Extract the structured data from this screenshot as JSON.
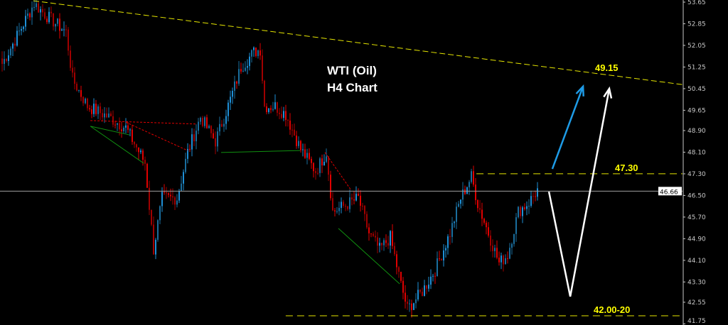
{
  "chart_data": {
    "type": "candlestick",
    "title_lines": [
      "WTI (Oil)",
      "H4 Chart"
    ],
    "ylim": [
      41.75,
      53.65
    ],
    "y_ticks": [
      "53.65",
      "52.85",
      "52.05",
      "51.25",
      "50.45",
      "49.65",
      "48.90",
      "48.10",
      "47.30",
      "46.50",
      "45.70",
      "44.90",
      "44.10",
      "43.30",
      "42.55",
      "41.75"
    ],
    "current_price": "46.66",
    "price_path": [
      [
        0,
        51.37
      ],
      [
        7,
        52.4
      ],
      [
        15,
        53.6
      ],
      [
        20,
        53.2
      ],
      [
        30,
        52.55
      ],
      [
        33,
        50.8
      ],
      [
        40,
        49.8
      ],
      [
        50,
        49.4
      ],
      [
        58,
        49.0
      ],
      [
        67,
        47.7
      ],
      [
        71,
        44.5
      ],
      [
        75,
        46.4
      ],
      [
        82,
        46.4
      ],
      [
        87,
        48.1
      ],
      [
        93,
        49.4
      ],
      [
        100,
        48.5
      ],
      [
        107,
        50.05
      ],
      [
        112,
        51.25
      ],
      [
        118,
        51.8
      ],
      [
        121,
        51.9
      ],
      [
        123,
        49.8
      ],
      [
        128,
        49.8
      ],
      [
        133,
        49.5
      ],
      [
        140,
        48.2
      ],
      [
        147,
        47.4
      ],
      [
        152,
        48.1
      ],
      [
        155,
        45.9
      ],
      [
        160,
        46.1
      ],
      [
        167,
        46.4
      ],
      [
        172,
        45.1
      ],
      [
        177,
        44.5
      ],
      [
        182,
        44.95
      ],
      [
        187,
        43.2
      ],
      [
        190,
        42.3
      ],
      [
        197,
        42.95
      ],
      [
        203,
        43.75
      ],
      [
        210,
        45.1
      ],
      [
        215,
        46.4
      ],
      [
        220,
        47.2
      ],
      [
        223,
        46.2
      ],
      [
        228,
        45.1
      ],
      [
        233,
        44.0
      ],
      [
        237,
        44.3
      ],
      [
        242,
        45.9
      ],
      [
        247,
        46.25
      ],
      [
        251,
        46.7
      ]
    ],
    "trendline": {
      "from": [
        15,
        53.7
      ],
      "to": [
        341,
        50.38
      ],
      "color": "#e6e600"
    },
    "levels": [
      {
        "price": 47.3,
        "from_bar": 222.7,
        "label": "47.30"
      },
      {
        "price": 42.05,
        "from_bar": 133.3,
        "label": "42.00-20"
      }
    ],
    "target_label": {
      "bar": 278,
      "price": 51.1,
      "text": "49.15"
    },
    "pattern_lines_red": [
      [
        [
          41.7,
          49.27
        ],
        [
          91.7,
          49.14
        ]
      ],
      [
        [
          58.3,
          49.21
        ],
        [
          87.3,
          48.16
        ]
      ],
      [
        [
          151.7,
          48.09
        ],
        [
          164,
          46.69
        ]
      ]
    ],
    "pattern_lines_green": [
      [
        [
          41.7,
          49.06
        ],
        [
          66.7,
          47.69
        ]
      ],
      [
        [
          41.7,
          49.06
        ],
        [
          60,
          48.74
        ]
      ],
      [
        [
          103,
          48.09
        ],
        [
          140,
          48.16
        ]
      ],
      [
        [
          158,
          45.28
        ],
        [
          186.7,
          43.23
        ]
      ]
    ],
    "arrows": [
      {
        "color": "#1e9be6",
        "points": [
          [
            258.3,
            47.48
          ],
          [
            272.7,
            50.53
          ]
        ]
      },
      {
        "color": "#ffffff",
        "points": [
          [
            256.7,
            46.64
          ],
          [
            266.7,
            42.76
          ],
          [
            285,
            50.45
          ]
        ]
      }
    ],
    "colors": {
      "up": "#1e8fd6",
      "down": "#e00000",
      "level": "#e6e600",
      "price_line": "#a0a0a0"
    }
  }
}
